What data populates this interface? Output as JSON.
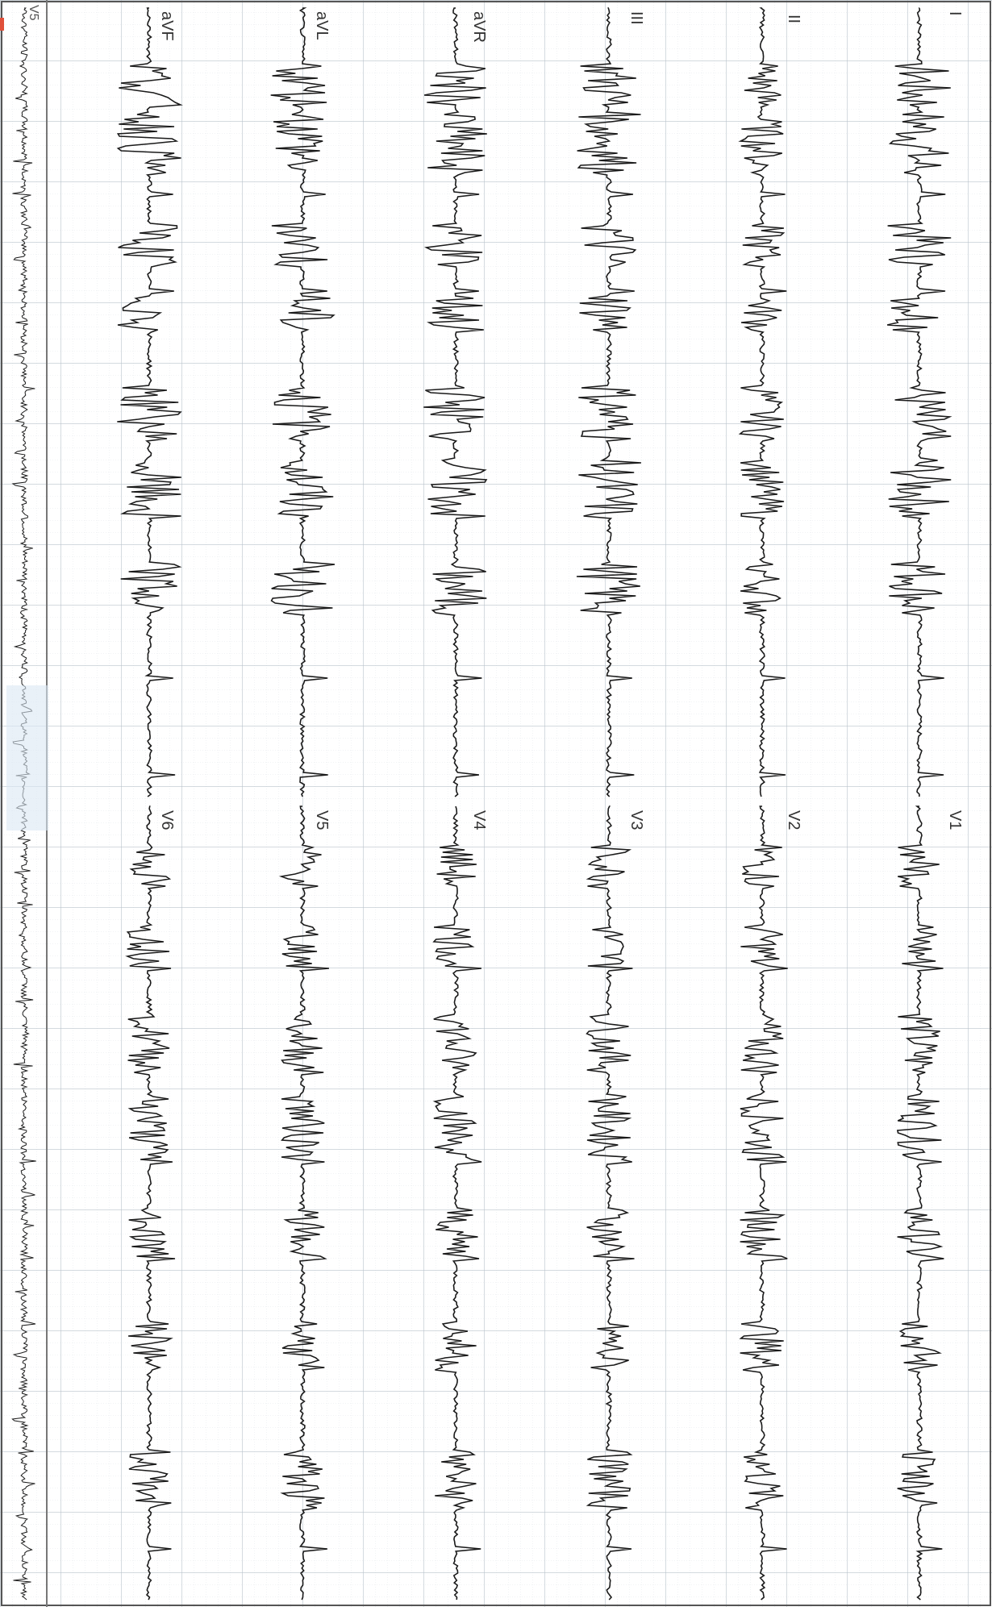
{
  "image": {
    "description_labels": {
      "lead_labels_top": [
        "I",
        "II",
        "III",
        "aVR",
        "aVL",
        "aVF"
      ],
      "lead_labels_bottom": [
        "V1",
        "V2",
        "V3",
        "V4",
        "V5",
        "V6"
      ],
      "rhythm_strip_label": "V5"
    },
    "colors": {
      "paper": "#ffffff",
      "grid_major": "#b9c3cc",
      "grid_minor": "#e3e7eb",
      "trace": "#1a1a1a",
      "marker": "#e0503a",
      "highlight": "#dbe8f3"
    }
  }
}
